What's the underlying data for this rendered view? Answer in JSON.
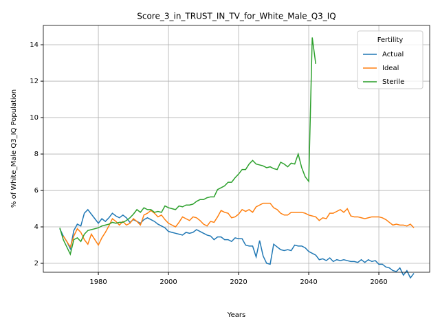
{
  "chart_data": {
    "type": "line",
    "title": "Score_3_in_TRUST_IN_TV_for_White_Male_Q3_IQ",
    "xlabel": "Years",
    "ylabel": "% of White_Male Q3_IQ Population",
    "legend_title": "Fertility",
    "legend": "upper right",
    "grid": true,
    "x": [
      1969,
      1970,
      1971,
      1972,
      1973,
      1974,
      1975,
      1976,
      1977,
      1978,
      1979,
      1980,
      1981,
      1982,
      1983,
      1984,
      1985,
      1986,
      1987,
      1988,
      1989,
      1990,
      1991,
      1992,
      1993,
      1994,
      1995,
      1996,
      1997,
      1998,
      1999,
      2000,
      2001,
      2002,
      2003,
      2004,
      2005,
      2006,
      2007,
      2008,
      2009,
      2010,
      2011,
      2012,
      2013,
      2014,
      2015,
      2016,
      2017,
      2018,
      2019,
      2020,
      2021,
      2022,
      2023,
      2024,
      2025,
      2026,
      2027,
      2028,
      2029,
      2030,
      2031,
      2032,
      2033,
      2034,
      2035,
      2036,
      2037,
      2038,
      2039,
      2040,
      2041,
      2042,
      2043,
      2044,
      2045,
      2046,
      2047,
      2048,
      2049,
      2050,
      2051,
      2052,
      2053,
      2054,
      2055,
      2056,
      2057,
      2058,
      2059,
      2060,
      2061,
      2062,
      2063,
      2064,
      2065,
      2066,
      2067,
      2068,
      2069,
      2070
    ],
    "series": [
      {
        "name": "Actual",
        "color": "#1f77b4",
        "values": [
          3.9,
          3.5,
          3.2,
          2.8,
          3.8,
          4.15,
          4.05,
          4.75,
          4.95,
          4.7,
          4.45,
          4.2,
          4.45,
          4.3,
          4.5,
          4.75,
          4.6,
          4.5,
          4.65,
          4.5,
          4.25,
          4.4,
          4.3,
          4.2,
          4.4,
          4.5,
          4.4,
          4.3,
          4.15,
          4.05,
          3.95,
          3.75,
          3.7,
          3.65,
          3.6,
          3.55,
          3.7,
          3.65,
          3.7,
          3.85,
          3.75,
          3.65,
          3.55,
          3.5,
          3.3,
          3.45,
          3.45,
          3.3,
          3.3,
          3.2,
          3.4,
          3.35,
          3.35,
          3.0,
          2.95,
          2.95,
          2.35,
          3.25,
          2.4,
          2.0,
          1.95,
          3.05,
          2.9,
          2.75,
          2.7,
          2.75,
          2.7,
          3.0,
          2.95,
          2.95,
          2.85,
          2.65,
          2.55,
          2.45,
          2.2,
          2.25,
          2.15,
          2.3,
          2.1,
          2.2,
          2.15,
          2.2,
          2.15,
          2.1,
          2.1,
          2.05,
          2.2,
          2.05,
          2.2,
          2.1,
          2.15,
          1.95,
          1.95,
          1.8,
          1.75,
          1.6,
          1.55,
          1.75,
          1.35,
          1.6,
          1.2,
          1.45
        ]
      },
      {
        "name": "Ideal",
        "color": "#ff7f0e",
        "values": [
          null,
          3.5,
          3.2,
          2.9,
          3.5,
          3.9,
          3.7,
          3.3,
          3.05,
          3.6,
          3.3,
          3.0,
          3.4,
          3.7,
          4.05,
          4.45,
          4.3,
          4.1,
          4.3,
          4.1,
          4.2,
          4.45,
          4.3,
          4.1,
          4.65,
          4.75,
          4.9,
          4.75,
          4.55,
          4.65,
          4.4,
          4.2,
          4.1,
          4.0,
          4.25,
          4.55,
          4.45,
          4.35,
          4.55,
          4.5,
          4.35,
          4.15,
          4.05,
          4.3,
          4.25,
          4.55,
          4.9,
          4.8,
          4.75,
          4.5,
          4.55,
          4.7,
          4.95,
          4.85,
          4.95,
          4.8,
          5.1,
          5.2,
          5.3,
          5.3,
          5.3,
          5.05,
          4.95,
          4.75,
          4.65,
          4.65,
          4.8,
          4.8,
          4.8,
          4.8,
          4.75,
          4.65,
          4.6,
          4.55,
          4.35,
          4.5,
          4.45,
          4.75,
          4.75,
          4.85,
          4.95,
          4.8,
          5.0,
          4.6,
          4.55,
          4.55,
          4.5,
          4.45,
          4.5,
          4.55,
          4.55,
          4.55,
          4.5,
          4.4,
          4.25,
          4.1,
          4.15,
          4.1,
          4.1,
          4.05,
          4.15,
          3.95
        ]
      },
      {
        "name": "Sterile",
        "color": "#2ca02c",
        "values": [
          3.95,
          3.3,
          2.9,
          2.5,
          3.3,
          3.4,
          3.2,
          3.6,
          3.8,
          3.85,
          3.9,
          3.95,
          4.05,
          4.1,
          4.15,
          4.25,
          4.2,
          4.25,
          4.25,
          4.35,
          4.5,
          4.7,
          4.95,
          4.8,
          5.05,
          4.95,
          4.95,
          4.8,
          4.85,
          4.8,
          5.15,
          5.05,
          5.0,
          4.95,
          5.15,
          5.1,
          5.2,
          5.2,
          5.25,
          5.4,
          5.5,
          5.5,
          5.6,
          5.65,
          5.65,
          6.05,
          6.15,
          6.25,
          6.45,
          6.45,
          6.7,
          6.9,
          7.15,
          7.15,
          7.45,
          7.65,
          7.45,
          7.4,
          7.35,
          7.25,
          7.3,
          7.2,
          7.15,
          7.55,
          7.45,
          7.3,
          7.5,
          7.45,
          8.0,
          7.25,
          6.75,
          6.5,
          14.4,
          12.95,
          null,
          null,
          null,
          null,
          null,
          null,
          null,
          null,
          null,
          null,
          null,
          null,
          null,
          null,
          null,
          null,
          null,
          null,
          null,
          null,
          null,
          null,
          null,
          null,
          null,
          null,
          null,
          null
        ]
      }
    ],
    "xlim": [
      1964.3,
      2074.5
    ],
    "xticks": [
      1980,
      2000,
      2020,
      2040,
      2060
    ],
    "ylim": [
      1.51,
      15.06
    ],
    "yticks": [
      2,
      4,
      6,
      8,
      10,
      12,
      14
    ]
  }
}
